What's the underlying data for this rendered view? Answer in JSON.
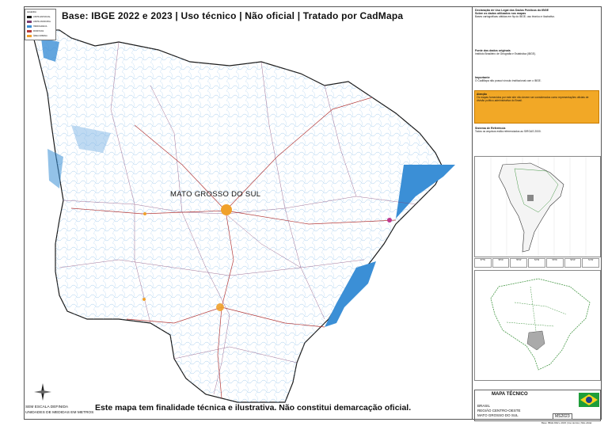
{
  "map": {
    "title": "Base: IBGE 2022 e 2023 | Uso técnico | Não oficial | Tratado por CadMapa",
    "state_label": "MATO GROSSO DO SUL",
    "disclaimer": "Este mapa tem finalidade técnica e ilustrativa. Não constitui demarcação oficial.",
    "scale_text": "SEM ESCALA DEFINIDA",
    "units_text": "UNIDADES DE MEDIDAS EM METROS",
    "north_label": "N",
    "legend": {
      "title": "LEGENDA",
      "items": [
        "LIMITE ESTADUAL",
        "LIMITE MUNICIPAL",
        "HIDROGRAFIA",
        "RODOVIAS",
        "ÁREA URBANA"
      ]
    },
    "colors": {
      "rivers": "#3b8fd6",
      "roads": "#b33a3a",
      "urban": "#f0a12b",
      "border": "#1a1a1a"
    }
  },
  "panel": {
    "s1_title": "Declaração de Uso Legal dos Dados Públicos do IBGE",
    "s1_sub": "Sobre os dados utilizados nos mapas",
    "s1_text": "Bases cartográficas obtidas em ftp do IBGE; uso técnico e ilustrativo.",
    "s2_title": "Fonte dos dados originais",
    "s2_text": "Instituto Brasileiro de Geografia e Estatística (IBGE).",
    "s3_title": "Importante",
    "s3_text": "O CadMapa não possui vínculo institucional com o IBGE.",
    "warn_title": "Atenção",
    "warn_text": "Os mapas fornecidos por este site não devem ser considerados como representações oficiais de divisão político-administrativa do Brasil.",
    "s4_title": "Sistema de Referência",
    "s4_text": "Todos os arquivos estão referenciados ao SIRGAS 2000.",
    "coords": [
      "57°W",
      "56°W",
      "55°W",
      "54°W",
      "53°W",
      "52°W",
      "51°W"
    ],
    "tb_title": "MAPA TÉCNICO",
    "tb_country": "BRASIL",
    "tb_region": "REGIÃO CENTRO-OESTE",
    "tb_state": "MATO GROSSO DO SUL",
    "tb_code": "MS2023",
    "footnote": "Base: IBGE 2022 e 2023 | Uso técnico | Não oficial"
  }
}
